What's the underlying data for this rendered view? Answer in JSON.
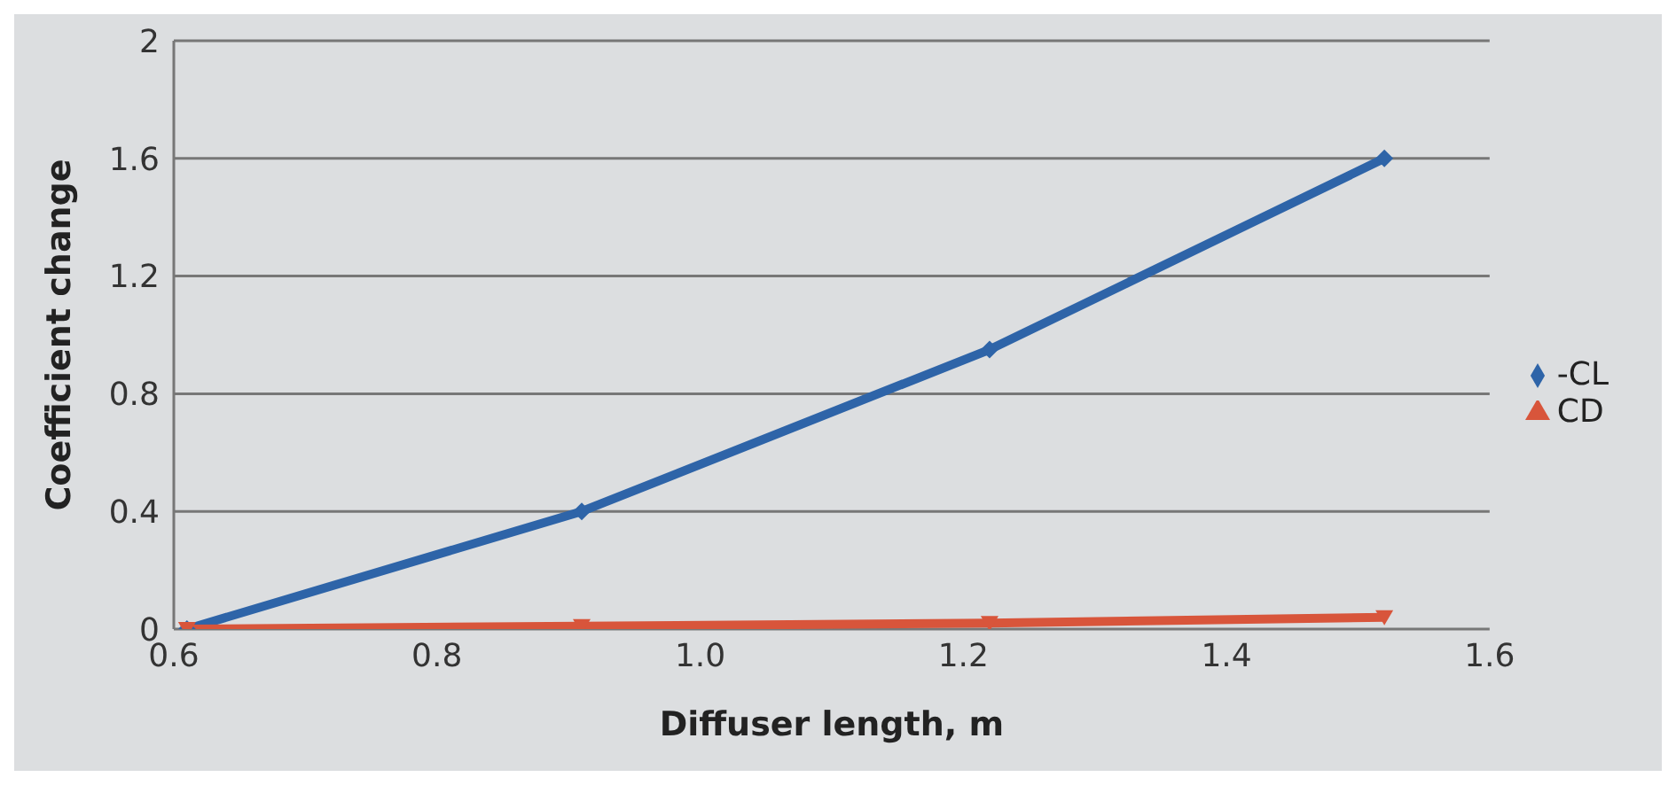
{
  "chart_data": {
    "type": "line",
    "xlabel": "Diffuser length, m",
    "ylabel": "Coefficient change",
    "x": [
      0.61,
      0.91,
      1.22,
      1.52
    ],
    "series": [
      {
        "name": "-CL",
        "color": "#2e64a8",
        "marker": "diamond",
        "values": [
          0,
          0.4,
          0.95,
          1.6
        ]
      },
      {
        "name": "CD",
        "color": "#d8553b",
        "marker": "triangle",
        "values": [
          0,
          0.01,
          0.02,
          0.04
        ]
      }
    ],
    "xlim": [
      0.6,
      1.6
    ],
    "xticks": [
      {
        "value": 0.6,
        "label": "0.6"
      },
      {
        "value": 0.8,
        "label": "0.8"
      },
      {
        "value": 1.0,
        "label": "1.0"
      },
      {
        "value": 1.2,
        "label": "1.2"
      },
      {
        "value": 1.4,
        "label": "1.4"
      },
      {
        "value": 1.6,
        "label": "1.6"
      }
    ],
    "ylim": [
      0,
      2
    ],
    "yticks": [
      0,
      0.4,
      0.8,
      1.2,
      1.6,
      2
    ],
    "grid": "y",
    "legend": "right",
    "line_style": "solid"
  }
}
